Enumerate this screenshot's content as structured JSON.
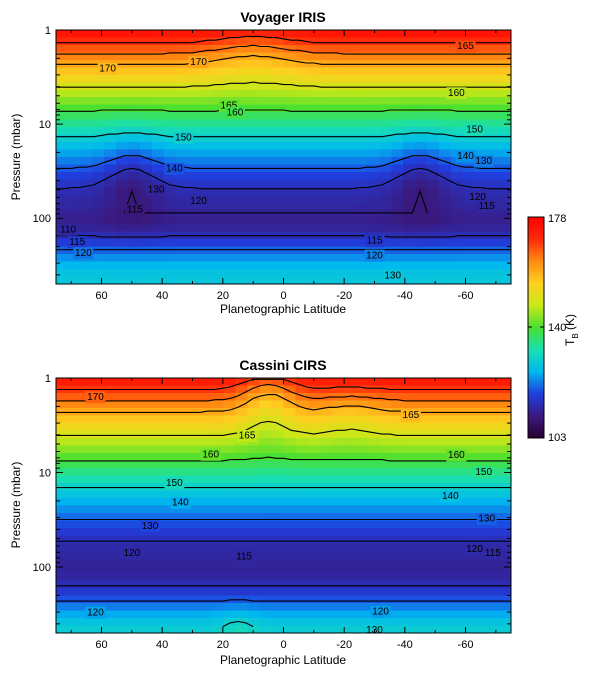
{
  "figure": {
    "colorbar": {
      "label": "T_B (K)",
      "label_main": "T",
      "label_sub": "B",
      "label_unit": " (K)",
      "min": 103,
      "mid": 140,
      "max": 178,
      "tick_labels": [
        "178",
        "140",
        "103"
      ],
      "colormap": [
        "#2a0030",
        "#3a1a80",
        "#1f3fe0",
        "#00b8f0",
        "#19e0b0",
        "#4ae030",
        "#c8e818",
        "#ffd020",
        "#ff8a12",
        "#ff2a0a",
        "#ff0000"
      ]
    }
  },
  "chart_data": [
    {
      "type": "heatmap",
      "title": "Voyager IRIS",
      "xlabel": "Planetographic Latitude",
      "ylabel": "Pressure (mbar)",
      "x_ticks": [
        "60",
        "40",
        "20",
        "0",
        "-20",
        "-40",
        "-60"
      ],
      "y_ticks": [
        "1",
        "10",
        "100"
      ],
      "xlim": [
        75,
        -75
      ],
      "ylim": [
        1,
        500
      ],
      "y_scale": "log",
      "contour_levels": [
        110,
        115,
        120,
        130,
        140,
        150,
        160,
        165,
        170
      ],
      "contour_labels": [
        {
          "text": "170",
          "lat": 58,
          "p": 2.6
        },
        {
          "text": "170",
          "lat": 28,
          "p": 2.2
        },
        {
          "text": "165",
          "lat": -60,
          "p": 1.5
        },
        {
          "text": "165",
          "lat": 18,
          "p": 6.4
        },
        {
          "text": "160",
          "lat": 16,
          "p": 7.6
        },
        {
          "text": "160",
          "lat": -57,
          "p": 4.7
        },
        {
          "text": "150",
          "lat": 33,
          "p": 14
        },
        {
          "text": "150",
          "lat": -63,
          "p": 11.5
        },
        {
          "text": "140",
          "lat": 36,
          "p": 30
        },
        {
          "text": "140",
          "lat": -60,
          "p": 22
        },
        {
          "text": "130",
          "lat": -66,
          "p": 25
        },
        {
          "text": "130",
          "lat": 42,
          "p": 50
        },
        {
          "text": "120",
          "lat": 28,
          "p": 66
        },
        {
          "text": "120",
          "lat": -64,
          "p": 60
        },
        {
          "text": "115",
          "lat": 49,
          "p": 82
        },
        {
          "text": "115",
          "lat": -67,
          "p": 75
        },
        {
          "text": "115",
          "lat": -30,
          "p": 175
        },
        {
          "text": "110",
          "lat": 71,
          "p": 133
        },
        {
          "text": "115",
          "lat": 68,
          "p": 180
        },
        {
          "text": "120",
          "lat": 66,
          "p": 235
        },
        {
          "text": "120",
          "lat": -30,
          "p": 250
        },
        {
          "text": "130",
          "lat": -36,
          "p": 410
        }
      ]
    },
    {
      "type": "heatmap",
      "title": "Cassini CIRS",
      "xlabel": "Planetographic Latitude",
      "ylabel": "Pressure (mbar)",
      "x_ticks": [
        "60",
        "40",
        "20",
        "0",
        "-20",
        "-40",
        "-60"
      ],
      "y_ticks": [
        "1",
        "10",
        "100"
      ],
      "xlim": [
        75,
        -75
      ],
      "ylim": [
        1,
        500
      ],
      "y_scale": "log",
      "contour_levels": [
        115,
        120,
        130,
        140,
        150,
        160,
        165,
        170
      ],
      "contour_labels": [
        {
          "text": "170",
          "lat": 62,
          "p": 1.6
        },
        {
          "text": "165",
          "lat": 12,
          "p": 4.1
        },
        {
          "text": "165",
          "lat": -42,
          "p": 2.5
        },
        {
          "text": "160",
          "lat": 24,
          "p": 6.5
        },
        {
          "text": "160",
          "lat": -57,
          "p": 6.6
        },
        {
          "text": "150",
          "lat": 36,
          "p": 13
        },
        {
          "text": "150",
          "lat": -66,
          "p": 10
        },
        {
          "text": "140",
          "lat": 34,
          "p": 21
        },
        {
          "text": "140",
          "lat": -55,
          "p": 18
        },
        {
          "text": "130",
          "lat": 44,
          "p": 37
        },
        {
          "text": "130",
          "lat": -67,
          "p": 31
        },
        {
          "text": "120",
          "lat": 50,
          "p": 72
        },
        {
          "text": "120",
          "lat": -63,
          "p": 65
        },
        {
          "text": "115",
          "lat": 13,
          "p": 78
        },
        {
          "text": "115",
          "lat": -69,
          "p": 72
        },
        {
          "text": "120",
          "lat": 62,
          "p": 305
        },
        {
          "text": "120",
          "lat": -32,
          "p": 300
        },
        {
          "text": "130",
          "lat": -30,
          "p": 470
        }
      ]
    }
  ]
}
